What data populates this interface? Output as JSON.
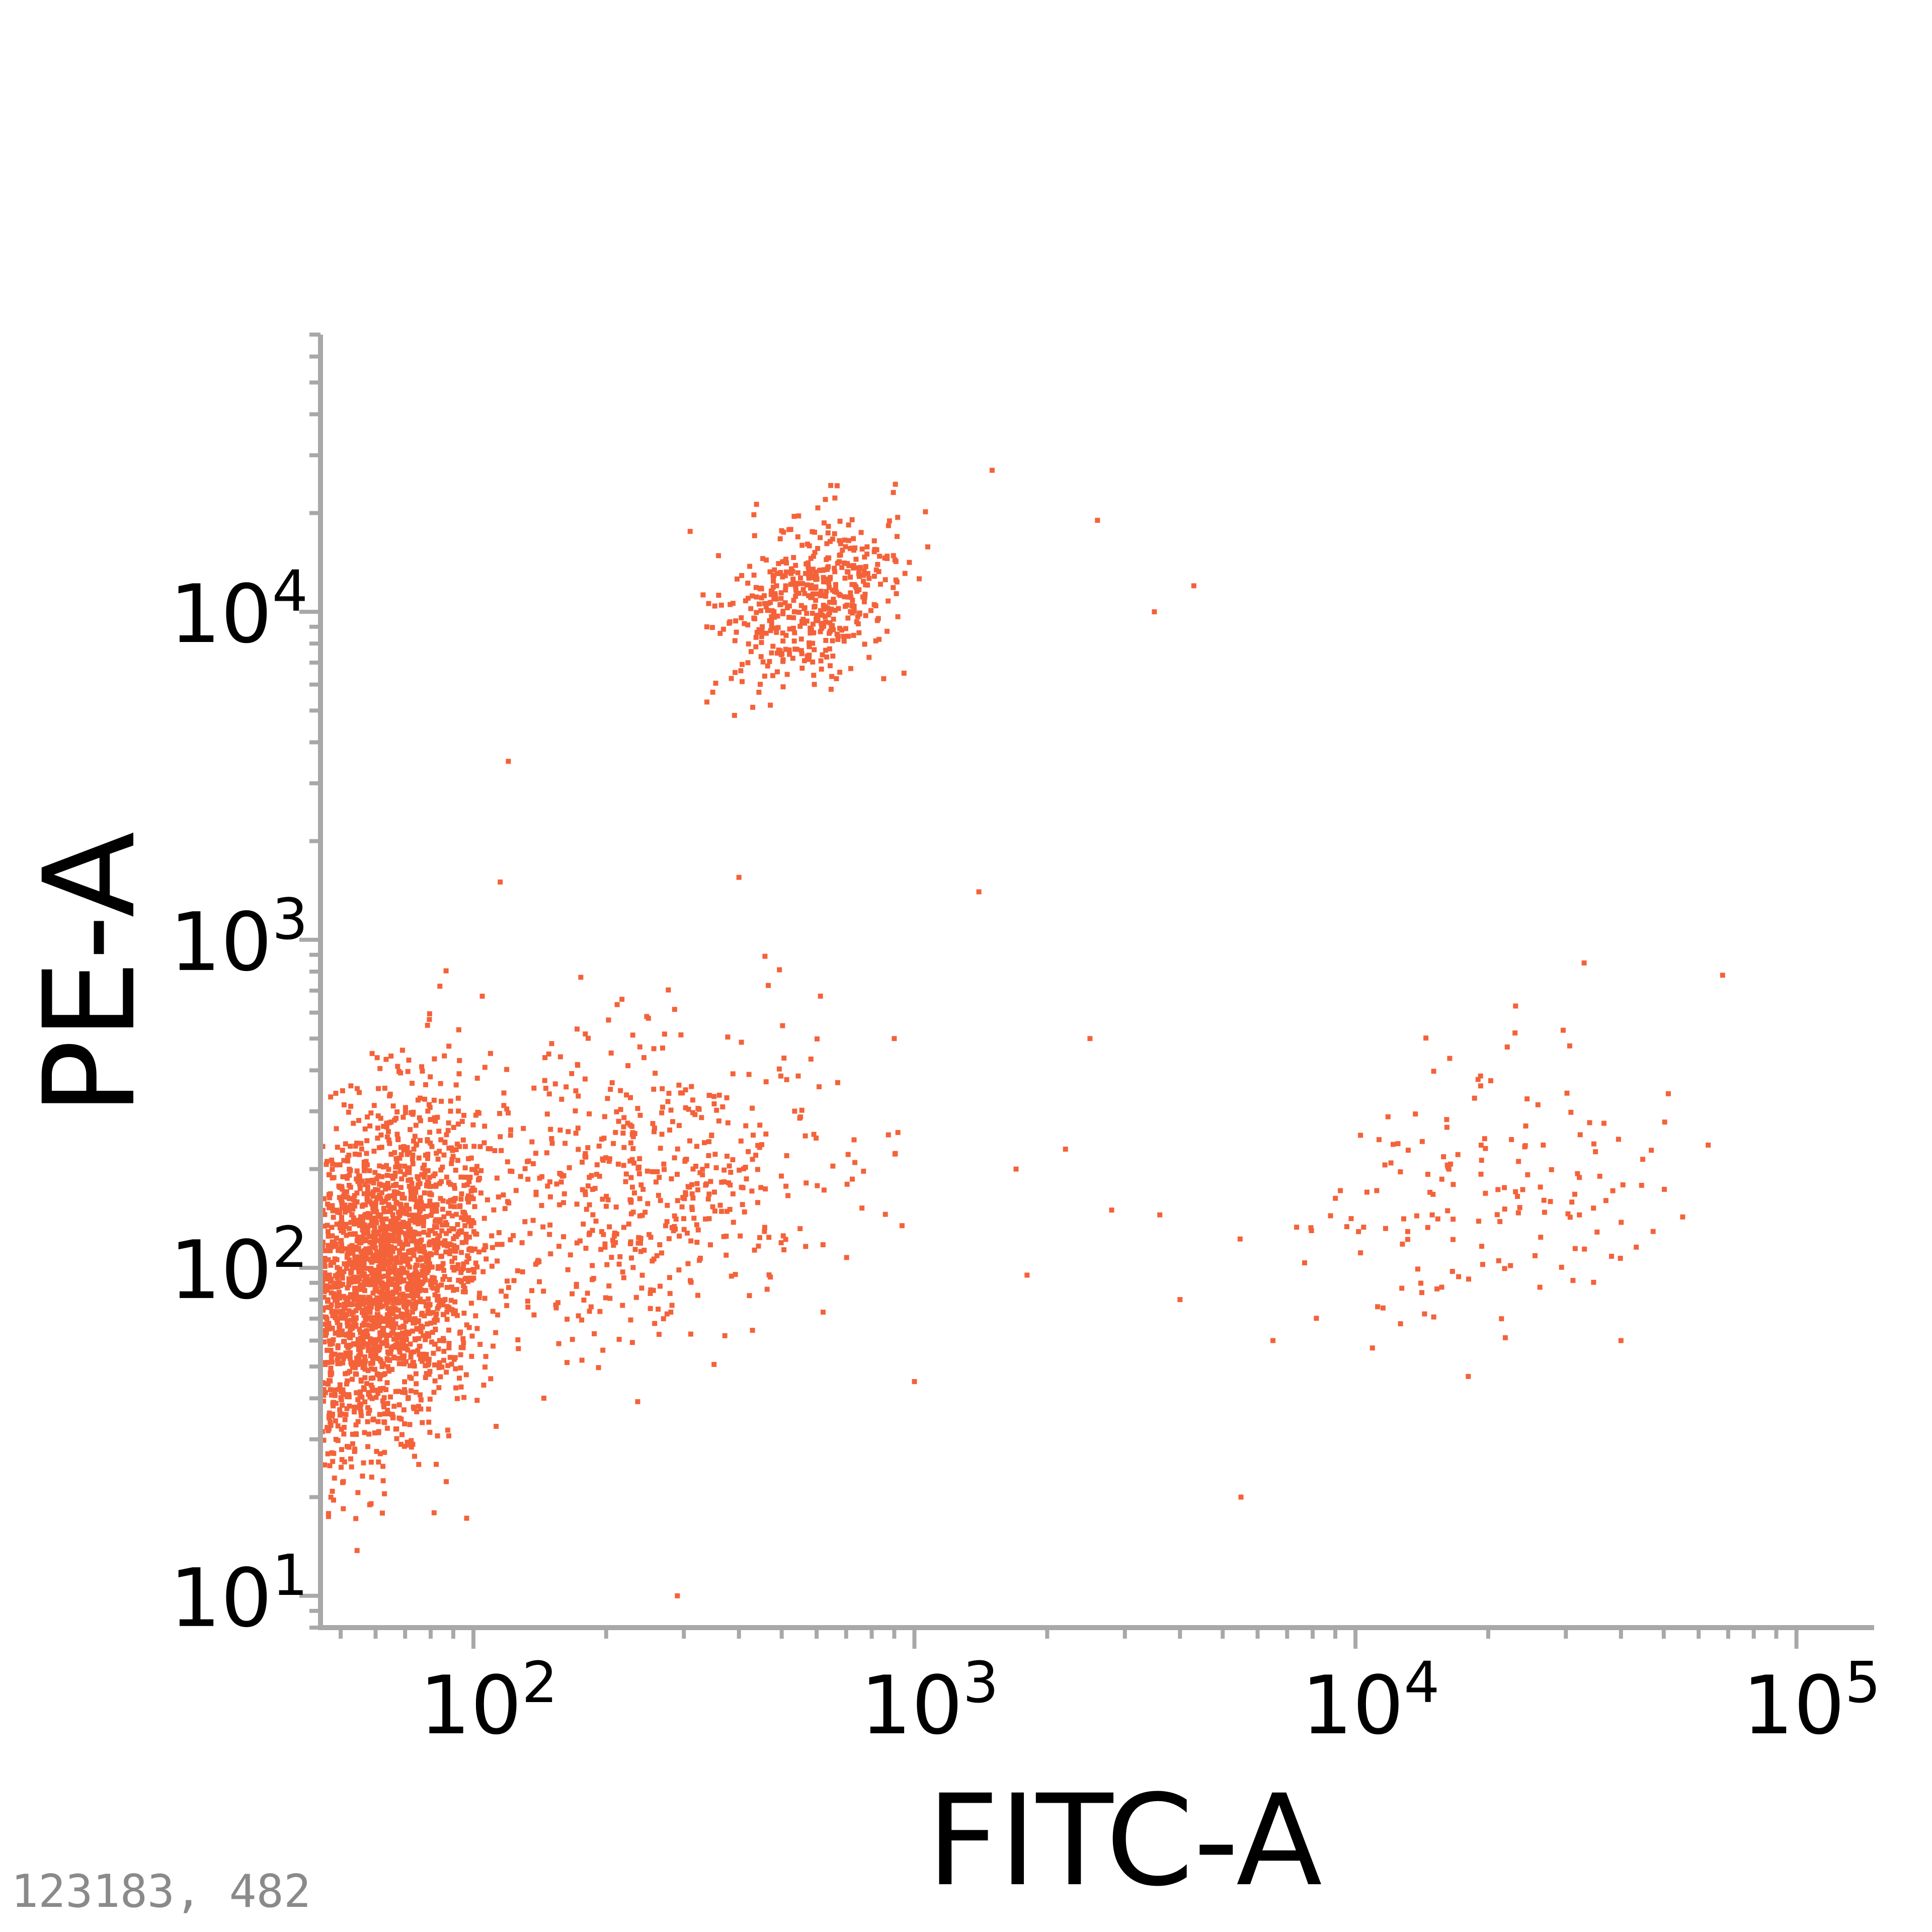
{
  "chart_data": {
    "type": "scatter",
    "title": "",
    "xlabel": "FITC-A",
    "ylabel": "PE-A",
    "x_scale": "log",
    "y_scale": "log",
    "xlim": [
      45,
      150000
    ],
    "ylim": [
      8,
      70000
    ],
    "x_ticks": [
      {
        "value": 100,
        "base": "10",
        "exp": "2"
      },
      {
        "value": 1000,
        "base": "10",
        "exp": "3"
      },
      {
        "value": 10000,
        "base": "10",
        "exp": "4"
      },
      {
        "value": 100000,
        "base": "10",
        "exp": "5"
      }
    ],
    "y_ticks": [
      {
        "value": 10,
        "base": "10",
        "exp": "1"
      },
      {
        "value": 100,
        "base": "10",
        "exp": "2"
      },
      {
        "value": 1000,
        "base": "10",
        "exp": "3"
      },
      {
        "value": 10000,
        "base": "10",
        "exp": "4"
      }
    ],
    "grid": false,
    "legend": "none",
    "point_color": "#f4623a",
    "series": [
      {
        "populations": [
          {
            "x_center": 60,
            "y_center": 90,
            "x_spread": 0.12,
            "y_spread": 0.28,
            "count": 2600
          },
          {
            "x_center": 250,
            "y_center": 180,
            "x_spread": 0.2,
            "y_spread": 0.25,
            "count": 550
          },
          {
            "x_center": 580,
            "y_center": 11000,
            "x_spread": 0.1,
            "y_spread": 0.13,
            "count": 500
          },
          {
            "x_center": 20000,
            "y_center": 160,
            "x_spread": 0.22,
            "y_spread": 0.22,
            "count": 160
          }
        ],
        "points": [
          [
            1000,
            45
          ],
          [
            1500,
            27000
          ],
          [
            2600,
            19000
          ],
          [
            3500,
            10000
          ],
          [
            4300,
            12000
          ],
          [
            5500,
            20
          ],
          [
            6500,
            60
          ],
          [
            4000,
            80
          ],
          [
            120,
            3500
          ],
          [
            115,
            1500
          ],
          [
            400,
            1550
          ],
          [
            900,
            500
          ],
          [
            1400,
            1400
          ],
          [
            2500,
            500
          ],
          [
            68000,
            780
          ],
          [
            2800,
            150
          ],
          [
            3600,
            145
          ],
          [
            1700,
            200
          ],
          [
            1800,
            95
          ],
          [
            2200,
            230
          ],
          [
            130,
            8
          ],
          [
            290,
            10
          ],
          [
            40000,
            60
          ],
          [
            33000,
            850
          ],
          [
            23000,
            520
          ]
        ]
      }
    ]
  },
  "corner_readout": "123183, 482"
}
